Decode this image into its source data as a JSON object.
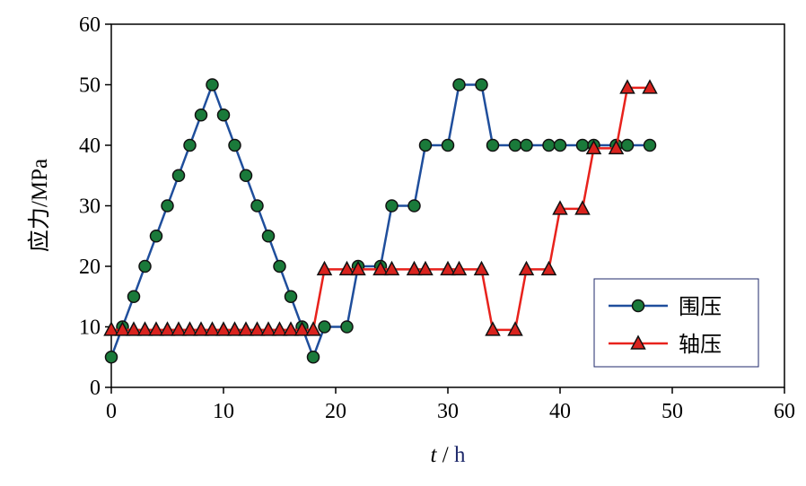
{
  "chart_data": {
    "type": "line",
    "ylabel": "应力/MPa",
    "xlabel_var": "t",
    "xlabel_sep": " / ",
    "xlabel_unit": "h",
    "xlim": [
      0,
      60
    ],
    "ylim": [
      0,
      60
    ],
    "xticks": [
      0,
      10,
      20,
      30,
      40,
      50,
      60
    ],
    "yticks": [
      0,
      10,
      20,
      30,
      40,
      50,
      60
    ],
    "grid": false,
    "legend_position": "bottom-right",
    "series": [
      {
        "name": "围压",
        "color": "#1f4e9c",
        "marker": "circle",
        "marker_fill": "#1a7a3a",
        "x": [
          0,
          1,
          2,
          3,
          4,
          5,
          6,
          7,
          8,
          9,
          10,
          11,
          12,
          13,
          14,
          15,
          16,
          17,
          18,
          19,
          21,
          22,
          24,
          25,
          27,
          28,
          30,
          31,
          33,
          34,
          36,
          37,
          39,
          40,
          42,
          43,
          45,
          46,
          48
        ],
        "y": [
          5,
          10,
          15,
          20,
          25,
          30,
          35,
          40,
          45,
          50,
          45,
          40,
          35,
          30,
          25,
          20,
          15,
          10,
          5,
          10,
          10,
          20,
          20,
          30,
          30,
          40,
          40,
          50,
          50,
          40,
          40,
          40,
          40,
          40,
          40,
          40,
          40,
          40,
          40
        ]
      },
      {
        "name": "轴压",
        "color": "#e8221c",
        "marker": "triangle",
        "marker_fill": "#d9231e",
        "x": [
          0,
          1,
          2,
          3,
          4,
          5,
          6,
          7,
          8,
          9,
          10,
          11,
          12,
          13,
          14,
          15,
          16,
          17,
          18,
          19,
          21,
          22,
          24,
          25,
          27,
          28,
          30,
          31,
          33,
          34,
          36,
          37,
          39,
          40,
          42,
          43,
          45,
          46,
          48
        ],
        "y": [
          9.5,
          9.5,
          9.5,
          9.5,
          9.5,
          9.5,
          9.5,
          9.5,
          9.5,
          9.5,
          9.5,
          9.5,
          9.5,
          9.5,
          9.5,
          9.5,
          9.5,
          9.5,
          9.5,
          19.5,
          19.5,
          19.5,
          19.5,
          19.5,
          19.5,
          19.5,
          19.5,
          19.5,
          19.5,
          9.5,
          9.5,
          19.5,
          19.5,
          29.5,
          29.5,
          39.5,
          39.5,
          49.5,
          49.5
        ]
      }
    ]
  }
}
